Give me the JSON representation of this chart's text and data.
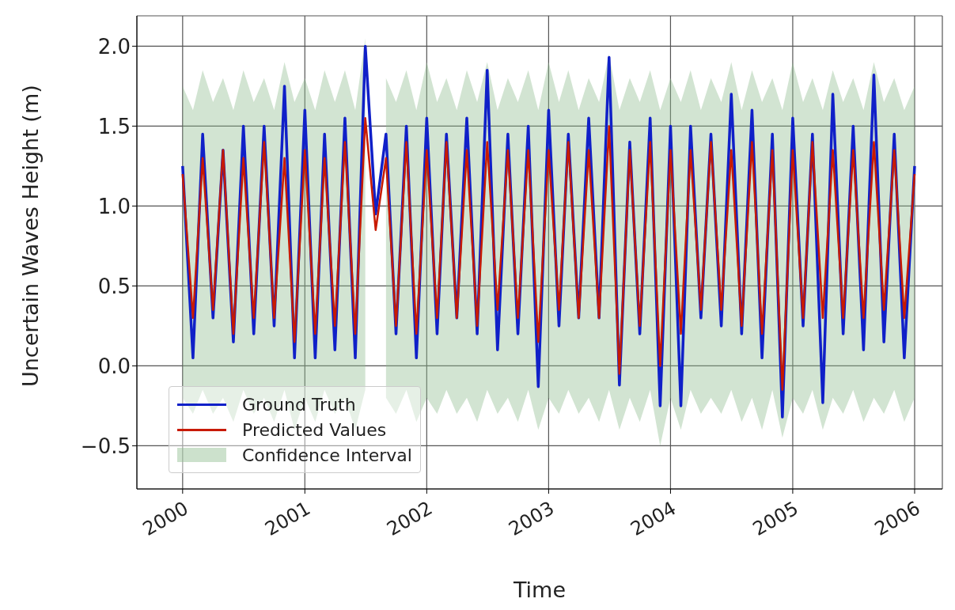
{
  "chart_data": {
    "type": "line",
    "xlabel": "Time",
    "ylabel": "Uncertain Waves Height (m)",
    "annotations": [
      "Confidence Interval"
    ],
    "x": [
      "2000-01",
      "2000-02",
      "2000-03",
      "2000-04",
      "2000-05",
      "2000-06",
      "2000-07",
      "2000-08",
      "2000-09",
      "2000-10",
      "2000-11",
      "2000-12",
      "2001-01",
      "2001-02",
      "2001-03",
      "2001-04",
      "2001-05",
      "2001-06",
      "2001-07",
      "2001-08",
      "2001-09",
      "2001-10",
      "2001-11",
      "2001-12",
      "2002-01",
      "2002-02",
      "2002-03",
      "2002-04",
      "2002-05",
      "2002-06",
      "2002-07",
      "2002-08",
      "2002-09",
      "2002-10",
      "2002-11",
      "2002-12",
      "2003-01",
      "2003-02",
      "2003-03",
      "2003-04",
      "2003-05",
      "2003-06",
      "2003-07",
      "2003-08",
      "2003-09",
      "2003-10",
      "2003-11",
      "2003-12",
      "2004-01",
      "2004-02",
      "2004-03",
      "2004-04",
      "2004-05",
      "2004-06",
      "2004-07",
      "2004-08",
      "2004-09",
      "2004-10",
      "2004-11",
      "2004-12",
      "2005-01",
      "2005-02",
      "2005-03",
      "2005-04",
      "2005-05",
      "2005-06",
      "2005-07",
      "2005-08",
      "2005-09",
      "2005-10",
      "2005-11",
      "2005-12",
      "2006-01"
    ],
    "series": [
      {
        "name": "Ground Truth",
        "color": "#1020c8",
        "values": [
          1.25,
          0.05,
          1.45,
          0.3,
          1.35,
          0.15,
          1.5,
          0.2,
          1.5,
          0.25,
          1.75,
          0.05,
          1.6,
          0.05,
          1.45,
          0.1,
          1.55,
          0.05,
          2.0,
          0.95,
          1.45,
          0.2,
          1.5,
          0.05,
          1.55,
          0.2,
          1.45,
          0.3,
          1.55,
          0.2,
          1.85,
          0.1,
          1.45,
          0.2,
          1.5,
          -0.13,
          1.6,
          0.25,
          1.45,
          0.3,
          1.55,
          0.3,
          1.93,
          -0.12,
          1.4,
          0.2,
          1.55,
          -0.25,
          1.5,
          -0.25,
          1.5,
          0.3,
          1.45,
          0.25,
          1.7,
          0.2,
          1.6,
          0.05,
          1.45,
          -0.32,
          1.55,
          0.25,
          1.45,
          -0.23,
          1.7,
          0.2,
          1.5,
          0.1,
          1.82,
          0.15,
          1.45,
          0.05,
          1.25
        ]
      },
      {
        "name": "Predicted Values",
        "color": "#c81a00",
        "values": [
          1.2,
          0.3,
          1.3,
          0.35,
          1.35,
          0.2,
          1.3,
          0.3,
          1.4,
          0.3,
          1.3,
          0.15,
          1.35,
          0.2,
          1.3,
          0.25,
          1.4,
          0.2,
          1.55,
          0.85,
          1.3,
          0.25,
          1.4,
          0.2,
          1.35,
          0.3,
          1.4,
          0.3,
          1.35,
          0.25,
          1.4,
          0.35,
          1.35,
          0.3,
          1.35,
          0.15,
          1.35,
          0.35,
          1.4,
          0.3,
          1.35,
          0.3,
          1.5,
          -0.05,
          1.35,
          0.25,
          1.4,
          0.0,
          1.35,
          0.2,
          1.35,
          0.35,
          1.4,
          0.35,
          1.35,
          0.25,
          1.4,
          0.2,
          1.35,
          -0.15,
          1.35,
          0.3,
          1.4,
          0.3,
          1.35,
          0.3,
          1.35,
          0.3,
          1.4,
          0.35,
          1.35,
          0.3,
          1.2
        ],
        "lower": [
          -0.2,
          -0.3,
          -0.15,
          -0.3,
          -0.2,
          -0.35,
          -0.15,
          -0.3,
          -0.2,
          -0.35,
          -0.15,
          -0.4,
          -0.2,
          -0.35,
          -0.15,
          -0.3,
          -0.2,
          -0.4,
          -0.15,
          null,
          -0.2,
          -0.3,
          -0.15,
          -0.35,
          -0.2,
          -0.3,
          -0.15,
          -0.3,
          -0.2,
          -0.35,
          -0.15,
          -0.3,
          -0.2,
          -0.35,
          -0.15,
          -0.4,
          -0.2,
          -0.3,
          -0.15,
          -0.3,
          -0.2,
          -0.35,
          -0.15,
          -0.4,
          -0.2,
          -0.35,
          -0.15,
          -0.5,
          -0.2,
          -0.4,
          -0.15,
          -0.3,
          -0.2,
          -0.3,
          -0.15,
          -0.35,
          -0.2,
          -0.4,
          -0.15,
          -0.45,
          -0.2,
          -0.3,
          -0.15,
          -0.4,
          -0.2,
          -0.3,
          -0.15,
          -0.35,
          -0.2,
          -0.3,
          -0.15,
          -0.35,
          -0.2
        ],
        "upper": [
          1.75,
          1.6,
          1.85,
          1.65,
          1.8,
          1.6,
          1.85,
          1.65,
          1.8,
          1.6,
          1.9,
          1.65,
          1.8,
          1.6,
          1.85,
          1.65,
          1.85,
          1.6,
          2.05,
          null,
          1.8,
          1.65,
          1.85,
          1.6,
          1.9,
          1.65,
          1.8,
          1.6,
          1.85,
          1.65,
          1.9,
          1.6,
          1.8,
          1.65,
          1.85,
          1.6,
          1.9,
          1.65,
          1.85,
          1.6,
          1.8,
          1.65,
          1.95,
          1.6,
          1.8,
          1.65,
          1.85,
          1.6,
          1.8,
          1.65,
          1.85,
          1.6,
          1.8,
          1.65,
          1.9,
          1.6,
          1.85,
          1.65,
          1.8,
          1.6,
          1.9,
          1.65,
          1.8,
          1.6,
          1.85,
          1.65,
          1.8,
          1.6,
          1.9,
          1.65,
          1.8,
          1.6,
          1.75
        ]
      }
    ],
    "xlim": [
      "1999-08-17",
      "2006-03-25"
    ],
    "xticks": [
      "2000",
      "2001",
      "2002",
      "2003",
      "2004",
      "2005",
      "2006"
    ],
    "ylim": [
      -0.77,
      2.19
    ],
    "yticks": [
      -0.5,
      {
        "value": 0,
        "label": "0.0"
      },
      0.5,
      {
        "value": 1,
        "label": "1.0"
      },
      1.5,
      {
        "value": 2,
        "label": "2.0"
      }
    ],
    "grid": true,
    "legend": "bottom left",
    "marker": "none",
    "line_style": "solid"
  }
}
